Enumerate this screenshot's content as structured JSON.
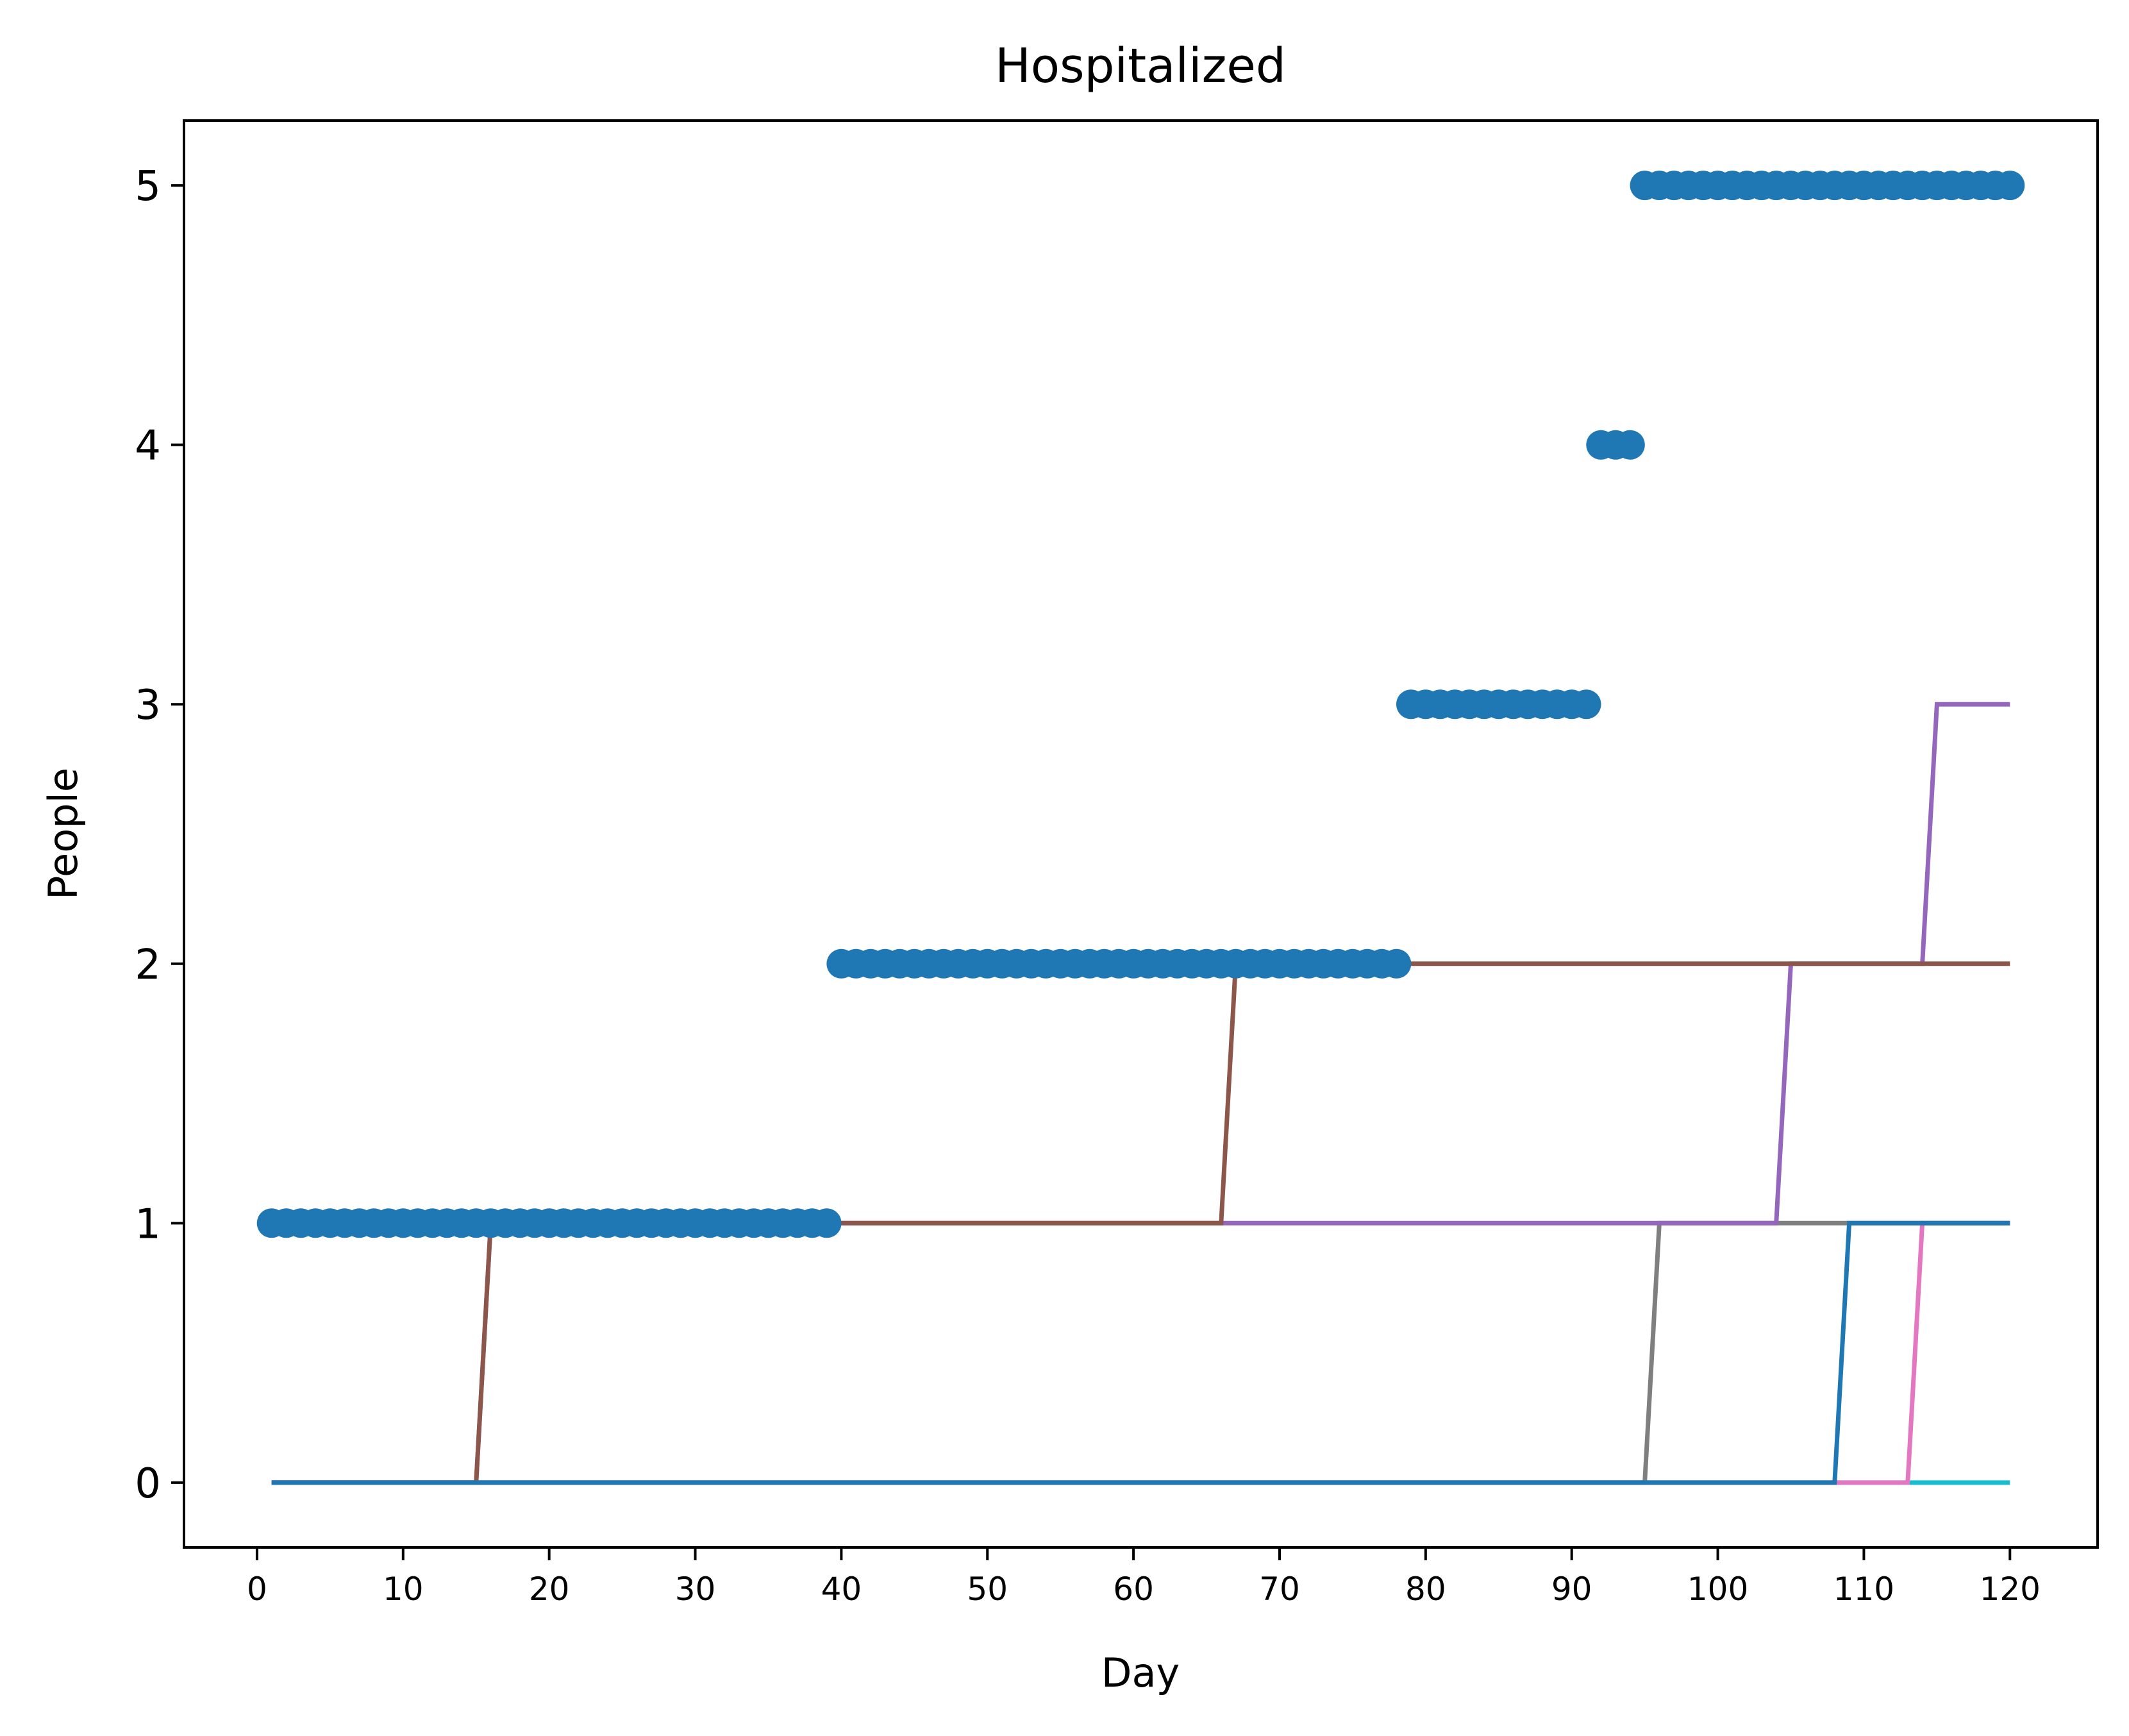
{
  "chart_data": {
    "type": "line",
    "title": "Hospitalized",
    "xlabel": "Day",
    "ylabel": "People",
    "xlim": [
      -5,
      126
    ],
    "ylim": [
      -0.25,
      5.25
    ],
    "xticks": [
      0,
      10,
      20,
      30,
      40,
      50,
      60,
      70,
      80,
      90,
      100,
      110,
      120
    ],
    "yticks": [
      0,
      1,
      2,
      3,
      4,
      5
    ],
    "grid": false,
    "colors": {
      "points": "#1f77b4",
      "axes": "#000000"
    },
    "scatter": {
      "color": "#1f77b4",
      "segments": [
        {
          "x_start": 1,
          "x_end": 39,
          "y": 1
        },
        {
          "x_start": 40,
          "x_end": 78,
          "y": 2
        },
        {
          "x_start": 79,
          "x_end": 91,
          "y": 3
        },
        {
          "x_start": 92,
          "x_end": 94,
          "y": 4
        },
        {
          "x_start": 95,
          "x_end": 120,
          "y": 5
        }
      ]
    },
    "series": [
      {
        "color": "#17becf",
        "x": [
          1,
          120
        ],
        "y": [
          0,
          0
        ]
      },
      {
        "color": "#e377c2",
        "x": [
          1,
          113,
          114,
          120
        ],
        "y": [
          0,
          0,
          1,
          1
        ]
      },
      {
        "color": "#7f7f7f",
        "x": [
          1,
          95,
          96,
          120
        ],
        "y": [
          0,
          0,
          1,
          1
        ]
      },
      {
        "color": "#9467bd",
        "x": [
          1,
          15,
          16,
          104,
          105,
          114,
          115,
          120
        ],
        "y": [
          0,
          0,
          1,
          1,
          2,
          2,
          3,
          3
        ]
      },
      {
        "color": "#8c564b",
        "x": [
          1,
          15,
          16,
          66,
          67,
          120
        ],
        "y": [
          0,
          0,
          1,
          1,
          2,
          2
        ]
      },
      {
        "color": "#1f77b4",
        "x": [
          1,
          108,
          109,
          120
        ],
        "y": [
          0,
          0,
          1,
          1
        ]
      }
    ]
  }
}
